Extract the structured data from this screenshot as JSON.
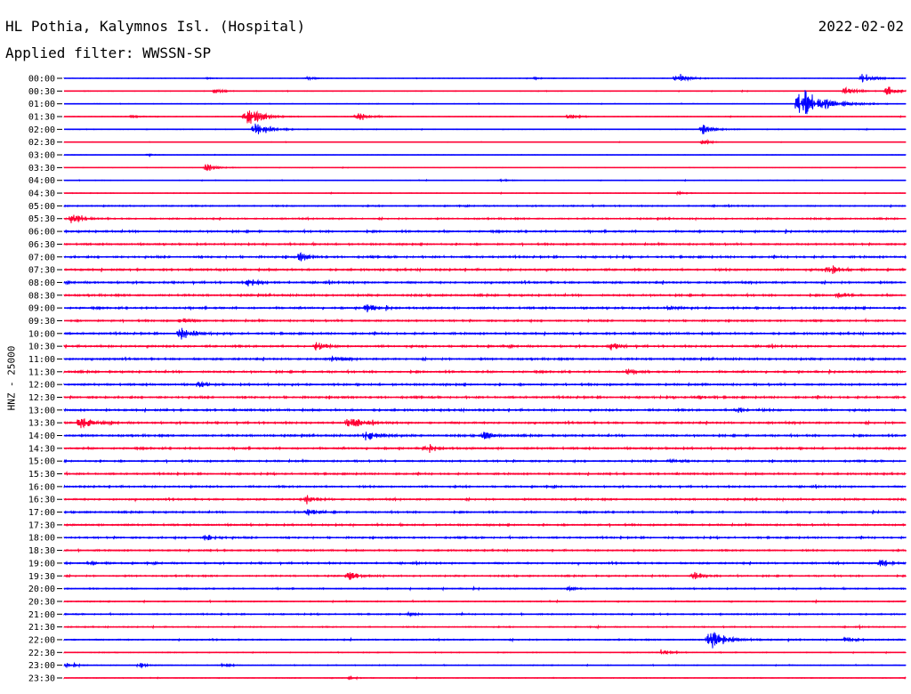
{
  "header": {
    "station": "HL Pothia, Kalymnos Isl. (Hospital)",
    "date": "2022-02-02",
    "filter": "Applied filter: WWSSN-SP"
  },
  "chart_data": {
    "type": "line",
    "title": "HL Pothia, Kalymnos Isl. (Hospital)",
    "ylabel": "HNZ - 25000",
    "y_ticks": [
      "00:00",
      "00:30",
      "01:00",
      "01:30",
      "02:00",
      "02:30",
      "03:00",
      "03:30",
      "04:00",
      "04:30",
      "05:00",
      "05:30",
      "06:00",
      "06:30",
      "07:00",
      "07:30",
      "08:00",
      "08:30",
      "09:00",
      "09:30",
      "10:00",
      "10:30",
      "11:00",
      "11:30",
      "12:00",
      "12:30",
      "13:00",
      "13:30",
      "14:00",
      "14:30",
      "15:00",
      "15:30",
      "16:00",
      "16:30",
      "17:00",
      "17:30",
      "18:00",
      "18:30",
      "19:00",
      "19:30",
      "20:00",
      "20:30",
      "21:00",
      "21:30",
      "22:00",
      "22:30",
      "23:00",
      "23:30"
    ],
    "series_colors": [
      "#0000ff",
      "#ff0033"
    ],
    "traces": [
      {
        "t": "00:00",
        "noise": 0.25,
        "events": [
          [
            0.17,
            1.0
          ],
          [
            0.29,
            2.0
          ],
          [
            0.56,
            1.5
          ],
          [
            0.73,
            6
          ],
          [
            0.95,
            6
          ]
        ]
      },
      {
        "t": "00:30",
        "noise": 0.3,
        "events": [
          [
            0.18,
            3
          ],
          [
            0.93,
            5
          ],
          [
            0.98,
            5
          ]
        ]
      },
      {
        "t": "01:00",
        "noise": 0.3,
        "events": [
          [
            0.88,
            16
          ]
        ]
      },
      {
        "t": "01:30",
        "noise": 0.3,
        "events": [
          [
            0.08,
            3
          ],
          [
            0.22,
            9
          ],
          [
            0.35,
            6
          ],
          [
            0.6,
            3
          ]
        ]
      },
      {
        "t": "02:00",
        "noise": 0.3,
        "events": [
          [
            0.23,
            8
          ],
          [
            0.76,
            6
          ]
        ]
      },
      {
        "t": "02:30",
        "noise": 0.2,
        "events": [
          [
            0.76,
            3
          ]
        ]
      },
      {
        "t": "03:00",
        "noise": 0.2,
        "events": [
          [
            0.1,
            1.5
          ]
        ]
      },
      {
        "t": "03:30",
        "noise": 0.2,
        "events": [
          [
            0.17,
            5
          ]
        ]
      },
      {
        "t": "04:00",
        "noise": 0.3,
        "events": [
          [
            0.52,
            2
          ]
        ]
      },
      {
        "t": "04:30",
        "noise": 0.3,
        "events": [
          [
            0.73,
            2
          ]
        ]
      },
      {
        "t": "05:00",
        "noise": 0.6,
        "events": []
      },
      {
        "t": "05:30",
        "noise": 0.7,
        "events": [
          [
            0.01,
            5
          ]
        ]
      },
      {
        "t": "06:00",
        "noise": 0.9,
        "events": []
      },
      {
        "t": "06:30",
        "noise": 0.8,
        "events": []
      },
      {
        "t": "07:00",
        "noise": 0.9,
        "events": [
          [
            0.28,
            4
          ]
        ]
      },
      {
        "t": "07:30",
        "noise": 0.9,
        "events": [
          [
            0.91,
            6
          ]
        ]
      },
      {
        "t": "08:00",
        "noise": 0.9,
        "events": [
          [
            0.22,
            4
          ]
        ]
      },
      {
        "t": "08:30",
        "noise": 0.9,
        "events": [
          [
            0.92,
            3
          ]
        ]
      },
      {
        "t": "09:00",
        "noise": 0.9,
        "events": [
          [
            0.36,
            5
          ],
          [
            0.72,
            3
          ]
        ]
      },
      {
        "t": "09:30",
        "noise": 0.8,
        "events": [
          [
            0.14,
            3
          ]
        ]
      },
      {
        "t": "10:00",
        "noise": 0.9,
        "events": [
          [
            0.14,
            6
          ]
        ]
      },
      {
        "t": "10:30",
        "noise": 0.9,
        "events": [
          [
            0.3,
            4
          ],
          [
            0.65,
            4
          ]
        ]
      },
      {
        "t": "11:00",
        "noise": 0.9,
        "events": [
          [
            0.32,
            3
          ]
        ]
      },
      {
        "t": "11:30",
        "noise": 0.9,
        "events": [
          [
            0.67,
            3
          ]
        ]
      },
      {
        "t": "12:00",
        "noise": 0.9,
        "events": [
          [
            0.16,
            3
          ]
        ]
      },
      {
        "t": "12:30",
        "noise": 0.9,
        "events": [
          [
            0.75,
            3
          ]
        ]
      },
      {
        "t": "13:00",
        "noise": 0.9,
        "events": [
          [
            0.8,
            4
          ]
        ]
      },
      {
        "t": "13:30",
        "noise": 0.9,
        "events": [
          [
            0.02,
            6
          ],
          [
            0.34,
            6
          ]
        ]
      },
      {
        "t": "14:00",
        "noise": 0.9,
        "events": [
          [
            0.36,
            6
          ],
          [
            0.5,
            4
          ]
        ]
      },
      {
        "t": "14:30",
        "noise": 0.9,
        "events": [
          [
            0.43,
            4
          ]
        ]
      },
      {
        "t": "15:00",
        "noise": 0.8,
        "events": [
          [
            0.72,
            3
          ]
        ]
      },
      {
        "t": "15:30",
        "noise": 0.8,
        "events": []
      },
      {
        "t": "16:00",
        "noise": 0.8,
        "events": []
      },
      {
        "t": "16:30",
        "noise": 0.8,
        "events": [
          [
            0.29,
            4
          ]
        ]
      },
      {
        "t": "17:00",
        "noise": 0.8,
        "events": [
          [
            0.29,
            4
          ]
        ]
      },
      {
        "t": "17:30",
        "noise": 0.8,
        "events": []
      },
      {
        "t": "18:00",
        "noise": 0.8,
        "events": [
          [
            0.17,
            4
          ]
        ]
      },
      {
        "t": "18:30",
        "noise": 0.7,
        "events": []
      },
      {
        "t": "19:00",
        "noise": 0.8,
        "events": [
          [
            0.03,
            3
          ],
          [
            0.97,
            5
          ]
        ]
      },
      {
        "t": "19:30",
        "noise": 0.7,
        "events": [
          [
            0.34,
            4
          ],
          [
            0.75,
            4
          ]
        ]
      },
      {
        "t": "20:00",
        "noise": 0.6,
        "events": [
          [
            0.6,
            2
          ]
        ]
      },
      {
        "t": "20:30",
        "noise": 0.5,
        "events": []
      },
      {
        "t": "21:00",
        "noise": 0.6,
        "events": [
          [
            0.41,
            2
          ]
        ]
      },
      {
        "t": "21:30",
        "noise": 0.5,
        "events": []
      },
      {
        "t": "22:00",
        "noise": 0.6,
        "events": [
          [
            0.77,
            10
          ],
          [
            0.93,
            4
          ]
        ]
      },
      {
        "t": "22:30",
        "noise": 0.4,
        "events": [
          [
            0.71,
            4
          ]
        ]
      },
      {
        "t": "23:00",
        "noise": 0.4,
        "events": [
          [
            0.0,
            4
          ],
          [
            0.09,
            3
          ],
          [
            0.19,
            2
          ]
        ]
      },
      {
        "t": "23:30",
        "noise": 0.3,
        "events": [
          [
            0.34,
            2
          ]
        ]
      }
    ]
  }
}
